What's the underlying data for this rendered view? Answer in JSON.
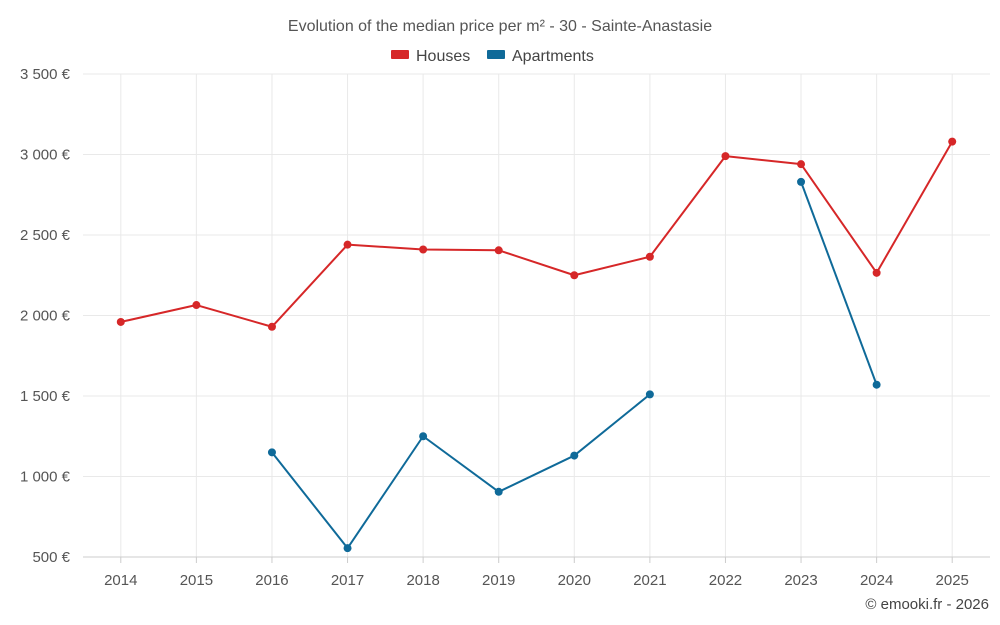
{
  "chart_data": {
    "type": "line",
    "title": "Evolution of the median price per m² - 30 - Sainte-Anastasie",
    "categories": [
      "2014",
      "2015",
      "2016",
      "2017",
      "2018",
      "2019",
      "2020",
      "2021",
      "2022",
      "2023",
      "2024",
      "2025"
    ],
    "series": [
      {
        "name": "Houses",
        "color": "#d62728",
        "values": [
          1960,
          2065,
          1930,
          2440,
          2410,
          2405,
          2250,
          2365,
          2990,
          2940,
          2265,
          3080
        ]
      },
      {
        "name": "Apartments",
        "color": "#0f6a99",
        "values": [
          null,
          null,
          1150,
          555,
          1250,
          905,
          1130,
          1510,
          null,
          2830,
          1570,
          null
        ]
      }
    ],
    "ylim": [
      500,
      3500
    ],
    "yticks": [
      500,
      1000,
      1500,
      2000,
      2500,
      3000,
      3500
    ],
    "ytick_labels": [
      "500 €",
      "1 000 €",
      "1 500 €",
      "2 000 €",
      "2 500 €",
      "3 000 €",
      "3 500 €"
    ],
    "grid": true,
    "legend_position": "top-center"
  },
  "credit": "© emooki.fr - 2026"
}
